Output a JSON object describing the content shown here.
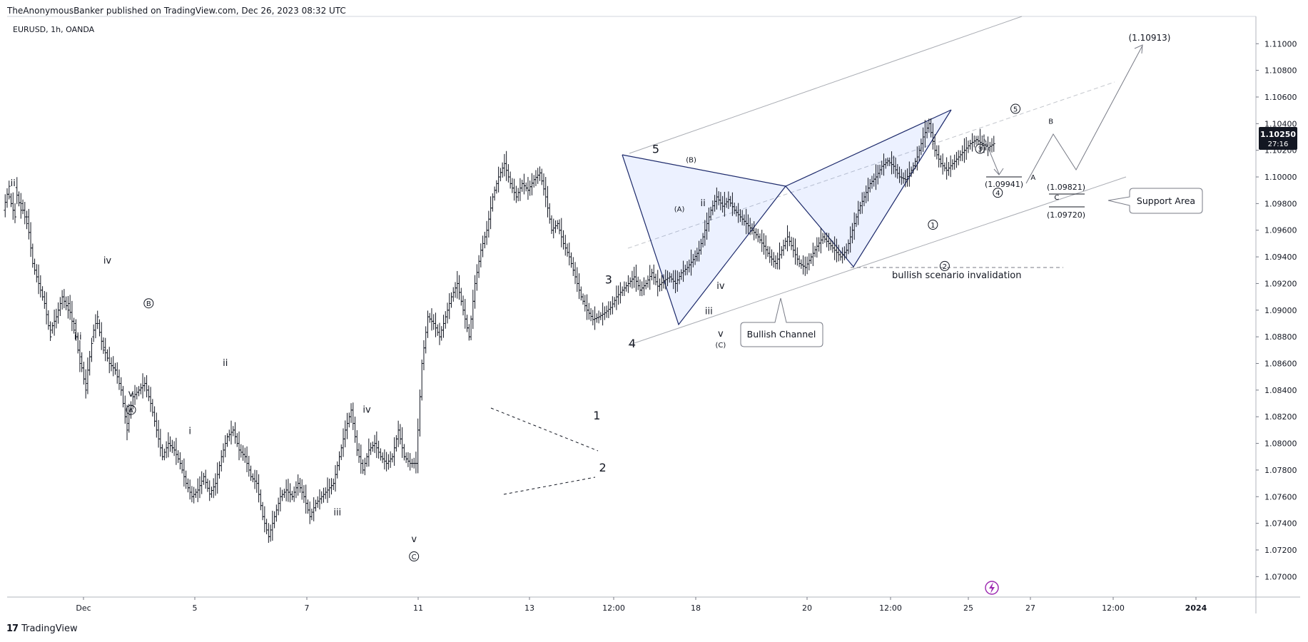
{
  "header": "TheAnonymousBanker published on TradingView.com, Dec 26, 2023 08:32 UTC",
  "symbol": "EURUSD, 1h, OANDA",
  "footer": {
    "logo_glyph": "17",
    "label": "TradingView"
  },
  "price_badge": {
    "price": "1.10250",
    "countdown": "27:16",
    "color": "#131722"
  },
  "lightning_icon": "lightning-icon",
  "chart_data": {
    "type": "ohlc",
    "ylim": [
      1.069,
      1.1113
    ],
    "y_ticks": [
      "1.11000",
      "1.10800",
      "1.10600",
      "1.10400",
      "1.10200",
      "1.10000",
      "1.09800",
      "1.09600",
      "1.09400",
      "1.09200",
      "1.09000",
      "1.08800",
      "1.08600",
      "1.08400",
      "1.08200",
      "1.08000",
      "1.07800",
      "1.07600",
      "1.07400",
      "1.07200",
      "1.07000"
    ],
    "x_ticks": [
      "Dec",
      "5",
      "7",
      "11",
      "13",
      "12:00",
      "18",
      "20",
      "12:00",
      "25",
      "27",
      "12:00",
      "2024"
    ],
    "price_path": [
      [
        1.0975,
        1.0993
      ],
      [
        1.0985,
        1.097
      ],
      [
        1.0992,
        1.0975
      ],
      [
        1.098,
        1.0965
      ],
      [
        1.097,
        1.0935
      ],
      [
        1.0935,
        1.092
      ],
      [
        1.092,
        1.0905
      ],
      [
        1.0905,
        1.088
      ],
      [
        1.0885,
        1.0895
      ],
      [
        1.0895,
        1.091
      ],
      [
        1.091,
        1.09
      ],
      [
        1.0905,
        1.0885
      ],
      [
        1.089,
        1.086
      ],
      [
        1.0865,
        1.084
      ],
      [
        1.0845,
        1.0875
      ],
      [
        1.088,
        1.0895
      ],
      [
        1.089,
        1.087
      ],
      [
        1.0872,
        1.086
      ],
      [
        1.086,
        1.0855
      ],
      [
        1.0855,
        1.084
      ],
      [
        1.084,
        1.081
      ],
      [
        1.0815,
        1.0835
      ],
      [
        1.0835,
        1.084
      ],
      [
        1.084,
        1.0845
      ],
      [
        1.0845,
        1.083
      ],
      [
        1.083,
        1.081
      ],
      [
        1.081,
        1.079
      ],
      [
        1.079,
        1.08
      ],
      [
        1.08,
        1.0795
      ],
      [
        1.0795,
        1.0785
      ],
      [
        1.0785,
        1.077
      ],
      [
        1.077,
        1.076
      ],
      [
        1.076,
        1.0765
      ],
      [
        1.0765,
        1.0775
      ],
      [
        1.0775,
        1.0762
      ],
      [
        1.0762,
        1.077
      ],
      [
        1.077,
        1.079
      ],
      [
        1.079,
        1.0805
      ],
      [
        1.0805,
        1.081
      ],
      [
        1.081,
        1.0795
      ],
      [
        1.0795,
        1.079
      ],
      [
        1.079,
        1.0775
      ],
      [
        1.0775,
        1.077
      ],
      [
        1.077,
        1.0745
      ],
      [
        1.0745,
        1.073
      ],
      [
        1.073,
        1.0745
      ],
      [
        1.0745,
        1.076
      ],
      [
        1.076,
        1.0765
      ],
      [
        1.0765,
        1.076
      ],
      [
        1.076,
        1.077
      ],
      [
        1.077,
        1.076
      ],
      [
        1.076,
        1.0745
      ],
      [
        1.0745,
        1.0755
      ],
      [
        1.0755,
        1.076
      ],
      [
        1.076,
        1.0765
      ],
      [
        1.0765,
        1.077
      ],
      [
        1.077,
        1.079
      ],
      [
        1.079,
        1.081
      ],
      [
        1.081,
        1.0825
      ],
      [
        1.0825,
        1.0795
      ],
      [
        1.0795,
        1.078
      ],
      [
        1.078,
        1.0795
      ],
      [
        1.0795,
        1.08
      ],
      [
        1.08,
        1.079
      ],
      [
        1.079,
        1.0785
      ],
      [
        1.0785,
        1.079
      ],
      [
        1.079,
        1.081
      ],
      [
        1.081,
        1.079
      ],
      [
        1.079,
        1.0785
      ],
      [
        1.0785,
        1.0785
      ],
      [
        1.0785,
        1.086
      ],
      [
        1.086,
        1.0895
      ],
      [
        1.0895,
        1.089
      ],
      [
        1.089,
        1.088
      ],
      [
        1.088,
        1.0895
      ],
      [
        1.0895,
        1.091
      ],
      [
        1.091,
        1.092
      ],
      [
        1.092,
        1.09
      ],
      [
        1.09,
        1.088
      ],
      [
        1.088,
        1.092
      ],
      [
        1.092,
        1.0945
      ],
      [
        1.0945,
        1.096
      ],
      [
        1.096,
        1.0985
      ],
      [
        1.0985,
        1.1
      ],
      [
        1.1,
        1.101
      ],
      [
        1.101,
        1.0995
      ],
      [
        1.0995,
        1.0985
      ],
      [
        1.0985,
        1.0995
      ],
      [
        1.0995,
        1.099
      ],
      [
        1.099,
        1.0998
      ],
      [
        1.0998,
        1.1003
      ],
      [
        1.1003,
        1.0985
      ],
      [
        1.0985,
        1.096
      ],
      [
        1.096,
        1.0965
      ],
      [
        1.0965,
        1.095
      ],
      [
        1.095,
        1.094
      ],
      [
        1.094,
        1.0925
      ],
      [
        1.0925,
        1.091
      ],
      [
        1.091,
        1.09
      ],
      [
        1.09,
        1.0893
      ],
      [
        1.0893,
        1.0895
      ],
      [
        1.0895,
        1.0898
      ],
      [
        1.0898,
        1.0902
      ],
      [
        1.0902,
        1.091
      ],
      [
        1.091,
        1.0915
      ],
      [
        1.0915,
        1.092
      ],
      [
        1.092,
        1.0925
      ],
      [
        1.0925,
        1.0915
      ],
      [
        1.0915,
        1.092
      ],
      [
        1.092,
        1.0928
      ],
      [
        1.0928,
        1.0918
      ],
      [
        1.0918,
        1.0922
      ],
      [
        1.0922,
        1.0925
      ],
      [
        1.0925,
        1.092
      ],
      [
        1.092,
        1.0928
      ],
      [
        1.0928,
        1.0932
      ],
      [
        1.0932,
        1.0938
      ],
      [
        1.0938,
        1.0945
      ],
      [
        1.0945,
        1.096
      ],
      [
        1.096,
        1.0975
      ],
      [
        1.0975,
        1.0985
      ],
      [
        1.0985,
        1.0978
      ],
      [
        1.0978,
        1.0983
      ],
      [
        1.0983,
        1.0975
      ],
      [
        1.0975,
        1.097
      ],
      [
        1.097,
        1.0965
      ],
      [
        1.0965,
        1.096
      ],
      [
        1.096,
        1.0955
      ],
      [
        1.0955,
        1.0948
      ],
      [
        1.0948,
        1.094
      ],
      [
        1.094,
        1.0935
      ],
      [
        1.0935,
        1.0945
      ],
      [
        1.0945,
        1.0955
      ],
      [
        1.0955,
        1.0945
      ],
      [
        1.0945,
        1.0935
      ],
      [
        1.0935,
        1.0932
      ],
      [
        1.0932,
        1.094
      ],
      [
        1.094,
        1.0948
      ],
      [
        1.0948,
        1.0955
      ],
      [
        1.0955,
        1.095
      ],
      [
        1.095,
        1.0945
      ],
      [
        1.0945,
        1.094
      ],
      [
        1.094,
        1.0945
      ],
      [
        1.0945,
        1.096
      ],
      [
        1.096,
        1.0975
      ],
      [
        1.0975,
        1.0985
      ],
      [
        1.0985,
        1.0995
      ],
      [
        1.0995,
        1.1
      ],
      [
        1.1,
        1.1008
      ],
      [
        1.1008,
        1.1012
      ],
      [
        1.1012,
        1.1008
      ],
      [
        1.1008,
        1.1
      ],
      [
        1.1,
        1.0998
      ],
      [
        1.0998,
        1.1005
      ],
      [
        1.1005,
        1.1015
      ],
      [
        1.1015,
        1.103
      ],
      [
        1.103,
        1.104
      ],
      [
        1.104,
        1.102
      ],
      [
        1.102,
        1.101
      ],
      [
        1.101,
        1.1005
      ],
      [
        1.1005,
        1.101
      ],
      [
        1.101,
        1.1015
      ],
      [
        1.1015,
        1.102
      ],
      [
        1.102,
        1.1025
      ],
      [
        1.1025,
        1.1028
      ],
      [
        1.1028,
        1.1025
      ],
      [
        1.1025,
        1.1022
      ],
      [
        1.1022,
        1.1025
      ]
    ],
    "annotations": {
      "wave_labels": [
        {
          "text": "ii",
          "t": 1,
          "p": 1.0993,
          "style": "roman"
        },
        {
          "text": "iii",
          "t": 12,
          "p": 1.0878,
          "style": "roman"
        },
        {
          "text": "iv",
          "t": 17,
          "p": 1.0935,
          "style": "roman"
        },
        {
          "text": "v",
          "t": 21,
          "p": 1.0835,
          "style": "roman"
        },
        {
          "text": "A",
          "t": 21,
          "p": 1.0823,
          "style": "circled"
        },
        {
          "text": "B",
          "t": 24,
          "p": 1.0903,
          "style": "circled"
        },
        {
          "text": "i",
          "t": 31,
          "p": 1.0807,
          "style": "roman"
        },
        {
          "text": "ii",
          "t": 37,
          "p": 1.0858,
          "style": "roman"
        },
        {
          "text": "iii",
          "t": 56,
          "p": 1.0746,
          "style": "roman"
        },
        {
          "text": "iv",
          "t": 61,
          "p": 1.0823,
          "style": "roman"
        },
        {
          "text": "v",
          "t": 69,
          "p": 1.0726,
          "style": "roman"
        },
        {
          "text": "C",
          "t": 69,
          "p": 1.0713,
          "style": "circled"
        },
        {
          "text": "1",
          "t": 100,
          "p": 1.0818,
          "style": "impulse"
        },
        {
          "text": "2",
          "t": 101,
          "p": 1.0779,
          "style": "impulse"
        },
        {
          "text": "3",
          "t": 102,
          "p": 1.092,
          "style": "impulse"
        },
        {
          "text": "4",
          "t": 106,
          "p": 1.0872,
          "style": "impulse"
        },
        {
          "text": "5",
          "t": 110,
          "p": 1.1018,
          "style": "impulse"
        },
        {
          "text": "(B)",
          "t": 116,
          "p": 1.1011,
          "style": "small"
        },
        {
          "text": "(A)",
          "t": 114,
          "p": 1.0974,
          "style": "small"
        },
        {
          "text": "ii",
          "t": 118,
          "p": 1.0978,
          "style": "roman"
        },
        {
          "text": "i",
          "t": 117,
          "p": 1.0937,
          "style": "roman"
        },
        {
          "text": "iv",
          "t": 121,
          "p": 1.0916,
          "style": "roman"
        },
        {
          "text": "iii",
          "t": 119,
          "p": 1.0897,
          "style": "roman"
        },
        {
          "text": "v",
          "t": 121,
          "p": 1.088,
          "style": "roman"
        },
        {
          "text": "(C)",
          "t": 121,
          "p": 1.0872,
          "style": "small"
        },
        {
          "text": "1",
          "t": 157,
          "p": 1.0962,
          "style": "circled"
        },
        {
          "text": "2",
          "t": 159,
          "p": 1.0931,
          "style": "circled"
        },
        {
          "text": "3",
          "t": 165,
          "p": 1.1019,
          "style": "circled"
        },
        {
          "text": "4",
          "t": 168,
          "p": 1.0986,
          "style": "circled"
        },
        {
          "text": "5",
          "t": 171,
          "p": 1.1049,
          "style": "circled"
        },
        {
          "text": "A",
          "t": 174,
          "p": 1.0998,
          "style": "small"
        },
        {
          "text": "B",
          "t": 177,
          "p": 1.104,
          "style": "small"
        },
        {
          "text": "C",
          "t": 178,
          "p": 1.0983,
          "style": "small"
        }
      ],
      "price_targets": [
        "(1.10913)",
        "(1.09941)",
        "(1.09821)",
        "(1.09720)"
      ],
      "callouts": [
        "Support Area",
        "Bullish Channel"
      ],
      "notes": [
        "bullish scenario invalidation"
      ]
    }
  }
}
